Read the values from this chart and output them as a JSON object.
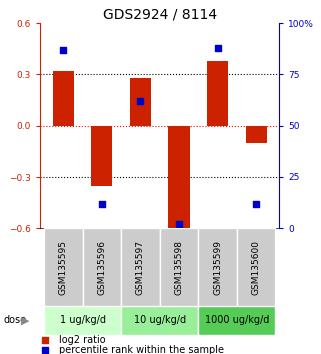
{
  "title": "GDS2924 / 8114",
  "samples": [
    "GSM135595",
    "GSM135596",
    "GSM135597",
    "GSM135598",
    "GSM135599",
    "GSM135600"
  ],
  "log2_ratios": [
    0.32,
    -0.35,
    0.28,
    -0.61,
    0.38,
    -0.1
  ],
  "percentile_ranks": [
    87,
    12,
    62,
    2,
    88,
    12
  ],
  "bar_color": "#cc2200",
  "dot_color": "#0000cc",
  "ylim_left": [
    -0.6,
    0.6
  ],
  "ylim_right": [
    0,
    100
  ],
  "yticks_left": [
    -0.6,
    -0.3,
    0.0,
    0.3,
    0.6
  ],
  "yticks_right": [
    0,
    25,
    50,
    75,
    100
  ],
  "ytick_labels_right": [
    "0",
    "25",
    "50",
    "75",
    "100%"
  ],
  "hlines_dotted": [
    -0.3,
    0.3
  ],
  "hline_dashed": 0.0,
  "dose_groups": [
    {
      "label": "1 ug/kg/d",
      "samples": [
        0,
        1
      ],
      "color": "#ccffcc"
    },
    {
      "label": "10 ug/kg/d",
      "samples": [
        2,
        3
      ],
      "color": "#99ee99"
    },
    {
      "label": "1000 ug/kg/d",
      "samples": [
        4,
        5
      ],
      "color": "#55cc55"
    }
  ],
  "dose_label": "dose",
  "legend_items": [
    {
      "label": "log2 ratio",
      "color": "#cc2200"
    },
    {
      "label": "percentile rank within the sample",
      "color": "#0000cc"
    }
  ],
  "bar_width": 0.55,
  "dot_size": 18,
  "title_fontsize": 10,
  "tick_fontsize": 6.5,
  "label_fontsize": 7,
  "sample_fontsize": 6.5
}
